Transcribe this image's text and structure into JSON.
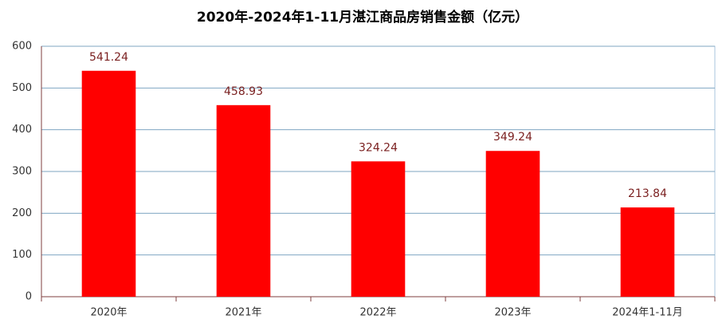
{
  "chart_data": {
    "type": "bar",
    "title": "2020年-2024年1-11月湛江商品房销售金额（亿元）",
    "categories": [
      "2020年",
      "2021年",
      "2022年",
      "2023年",
      "2024年1-11月"
    ],
    "values": [
      541.24,
      458.93,
      324.24,
      349.24,
      213.84
    ],
    "color": "#ff0000",
    "ylim": [
      0,
      600
    ],
    "yticks": [
      0,
      100,
      200,
      300,
      400,
      500,
      600
    ],
    "grid": true
  }
}
